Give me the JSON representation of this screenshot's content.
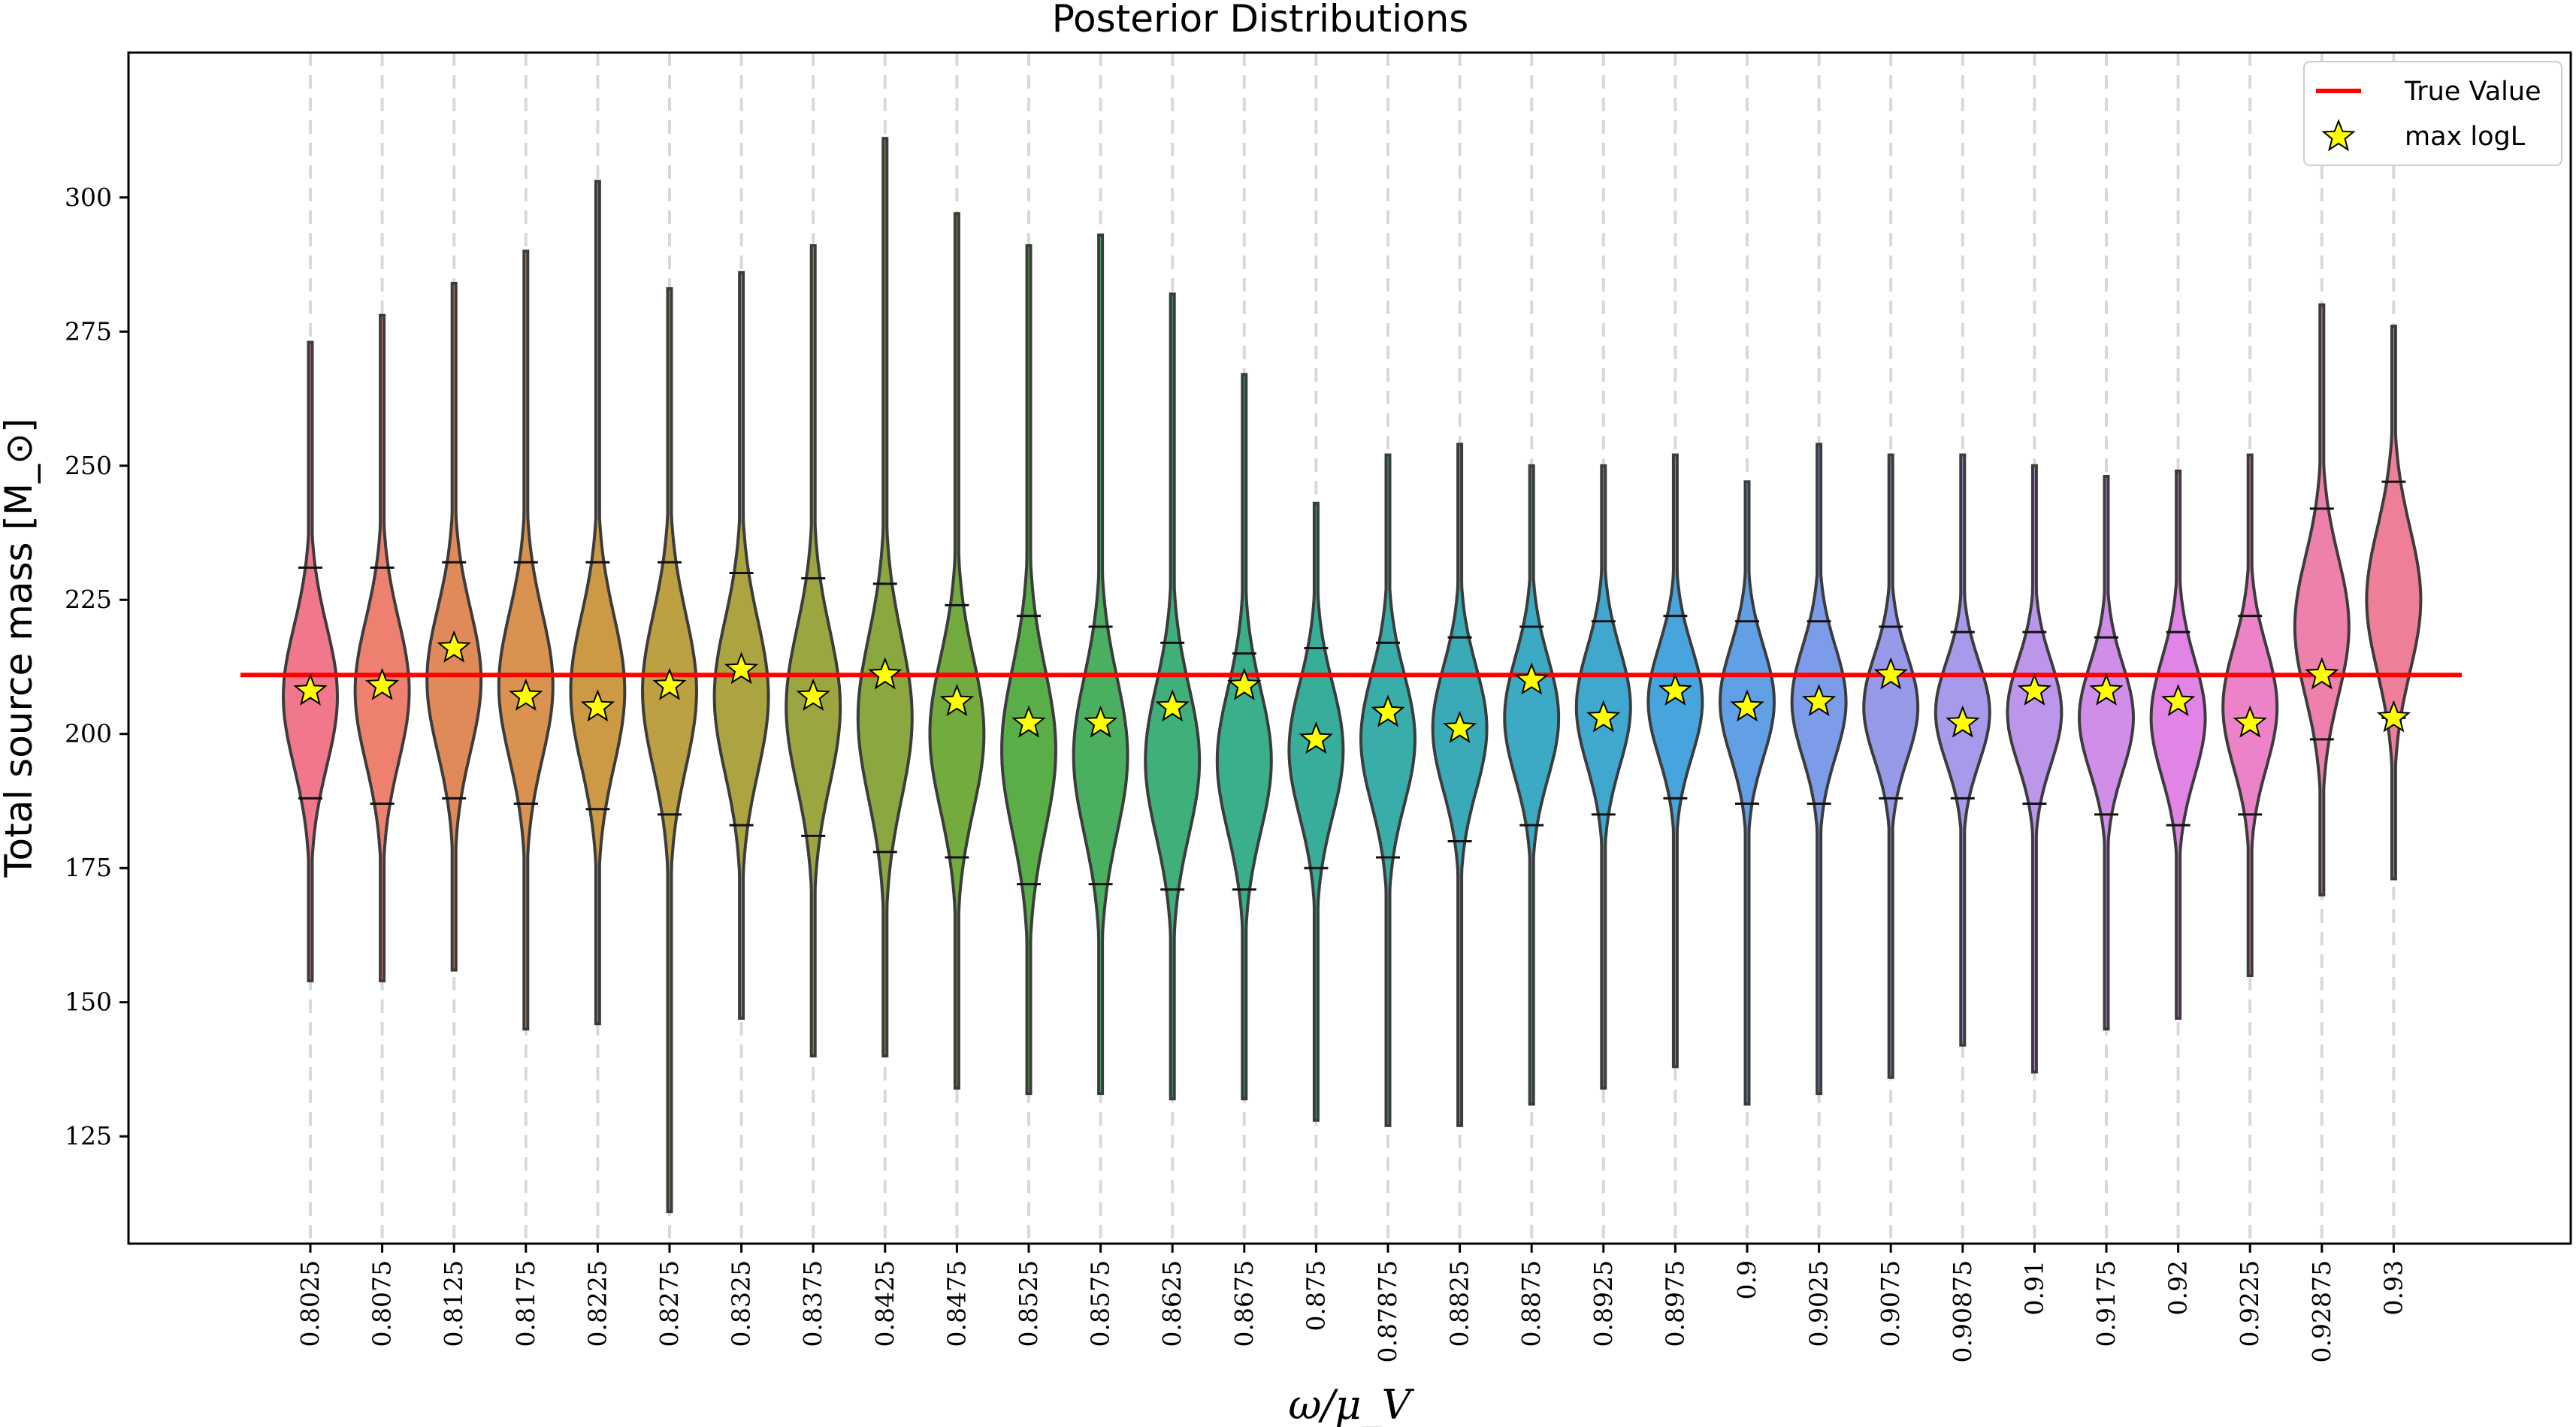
{
  "chart_data": {
    "type": "violin",
    "title": "Posterior Distributions",
    "xlabel": "ω/μ_V",
    "ylabel": "Total source mass [M_⊙]",
    "ylim": [
      105,
      327
    ],
    "yticks": [
      125,
      150,
      175,
      200,
      225,
      250,
      275,
      300
    ],
    "true_value": 211,
    "legend": {
      "position": "top-right",
      "entries": [
        {
          "label": "True Value",
          "color": "#ff0000",
          "marker": "line"
        },
        {
          "label": "max logL",
          "color": "#ffff00",
          "marker": "star"
        }
      ]
    },
    "grid": "vertical dashed",
    "categories": [
      "0.8025",
      "0.8075",
      "0.8125",
      "0.8175",
      "0.8225",
      "0.8275",
      "0.8325",
      "0.8375",
      "0.8425",
      "0.8475",
      "0.8525",
      "0.8575",
      "0.8625",
      "0.8675",
      "0.875",
      "0.87875",
      "0.8825",
      "0.8875",
      "0.8925",
      "0.8975",
      "0.9",
      "0.9025",
      "0.9075",
      "0.90875",
      "0.91",
      "0.9175",
      "0.92",
      "0.9225",
      "0.92875",
      "0.93"
    ],
    "colors": [
      "#f0788a",
      "#ee8070",
      "#e08a5a",
      "#d9924f",
      "#cc9a44",
      "#bda042",
      "#aca441",
      "#9ba640",
      "#8aa83f",
      "#74ab3e",
      "#5aae48",
      "#4ab060",
      "#3fb07a",
      "#3aaf8c",
      "#38ae9a",
      "#38adaa",
      "#3aabb6",
      "#3caac2",
      "#40a8cf",
      "#48a4dc",
      "#62a0e6",
      "#7c9ce9",
      "#969ae8",
      "#a89aea",
      "#bc96ea",
      "#d08ee9",
      "#e284e6",
      "#ec82c8",
      "#ee80ac",
      "#ef7e98"
    ],
    "series": [
      {
        "name": "violins",
        "values": [
          {
            "min": 154,
            "max": 273,
            "q_low": 188,
            "q_high": 231,
            "center": 207,
            "maxlogL": 208
          },
          {
            "min": 154,
            "max": 278,
            "q_low": 187,
            "q_high": 231,
            "center": 208,
            "maxlogL": 209
          },
          {
            "min": 156,
            "max": 284,
            "q_low": 188,
            "q_high": 232,
            "center": 210,
            "maxlogL": 216
          },
          {
            "min": 145,
            "max": 290,
            "q_low": 187,
            "q_high": 232,
            "center": 209,
            "maxlogL": 207
          },
          {
            "min": 146,
            "max": 303,
            "q_low": 186,
            "q_high": 232,
            "center": 208,
            "maxlogL": 205
          },
          {
            "min": 111,
            "max": 283,
            "q_low": 185,
            "q_high": 232,
            "center": 208,
            "maxlogL": 209
          },
          {
            "min": 147,
            "max": 286,
            "q_low": 183,
            "q_high": 230,
            "center": 207,
            "maxlogL": 212
          },
          {
            "min": 140,
            "max": 291,
            "q_low": 181,
            "q_high": 229,
            "center": 205,
            "maxlogL": 207
          },
          {
            "min": 140,
            "max": 311,
            "q_low": 178,
            "q_high": 228,
            "center": 203,
            "maxlogL": 211
          },
          {
            "min": 134,
            "max": 297,
            "q_low": 177,
            "q_high": 224,
            "center": 200,
            "maxlogL": 206
          },
          {
            "min": 133,
            "max": 291,
            "q_low": 172,
            "q_high": 222,
            "center": 197,
            "maxlogL": 202
          },
          {
            "min": 133,
            "max": 293,
            "q_low": 172,
            "q_high": 220,
            "center": 196,
            "maxlogL": 202
          },
          {
            "min": 132,
            "max": 282,
            "q_low": 171,
            "q_high": 217,
            "center": 195,
            "maxlogL": 205
          },
          {
            "min": 132,
            "max": 267,
            "q_low": 171,
            "q_high": 215,
            "center": 195,
            "maxlogL": 209
          },
          {
            "min": 128,
            "max": 243,
            "q_low": 175,
            "q_high": 216,
            "center": 197,
            "maxlogL": 199
          },
          {
            "min": 127,
            "max": 252,
            "q_low": 177,
            "q_high": 217,
            "center": 199,
            "maxlogL": 204
          },
          {
            "min": 127,
            "max": 254,
            "q_low": 180,
            "q_high": 218,
            "center": 201,
            "maxlogL": 201
          },
          {
            "min": 131,
            "max": 250,
            "q_low": 183,
            "q_high": 220,
            "center": 203,
            "maxlogL": 210
          },
          {
            "min": 134,
            "max": 250,
            "q_low": 185,
            "q_high": 221,
            "center": 205,
            "maxlogL": 203
          },
          {
            "min": 138,
            "max": 252,
            "q_low": 188,
            "q_high": 222,
            "center": 206,
            "maxlogL": 208
          },
          {
            "min": 131,
            "max": 247,
            "q_low": 187,
            "q_high": 221,
            "center": 206,
            "maxlogL": 205
          },
          {
            "min": 133,
            "max": 254,
            "q_low": 187,
            "q_high": 221,
            "center": 206,
            "maxlogL": 206
          },
          {
            "min": 136,
            "max": 252,
            "q_low": 188,
            "q_high": 220,
            "center": 205,
            "maxlogL": 211
          },
          {
            "min": 142,
            "max": 252,
            "q_low": 188,
            "q_high": 219,
            "center": 204,
            "maxlogL": 202
          },
          {
            "min": 137,
            "max": 250,
            "q_low": 187,
            "q_high": 219,
            "center": 204,
            "maxlogL": 208
          },
          {
            "min": 145,
            "max": 248,
            "q_low": 185,
            "q_high": 218,
            "center": 203,
            "maxlogL": 208
          },
          {
            "min": 147,
            "max": 249,
            "q_low": 183,
            "q_high": 219,
            "center": 203,
            "maxlogL": 206
          },
          {
            "min": 155,
            "max": 252,
            "q_low": 185,
            "q_high": 222,
            "center": 205,
            "maxlogL": 202
          },
          {
            "min": 170,
            "max": 280,
            "q_low": 199,
            "q_high": 242,
            "center": 220,
            "maxlogL": 211
          },
          {
            "min": 173,
            "max": 276,
            "q_low": 203,
            "q_high": 247,
            "center": 225,
            "maxlogL": 203
          }
        ]
      }
    ]
  }
}
